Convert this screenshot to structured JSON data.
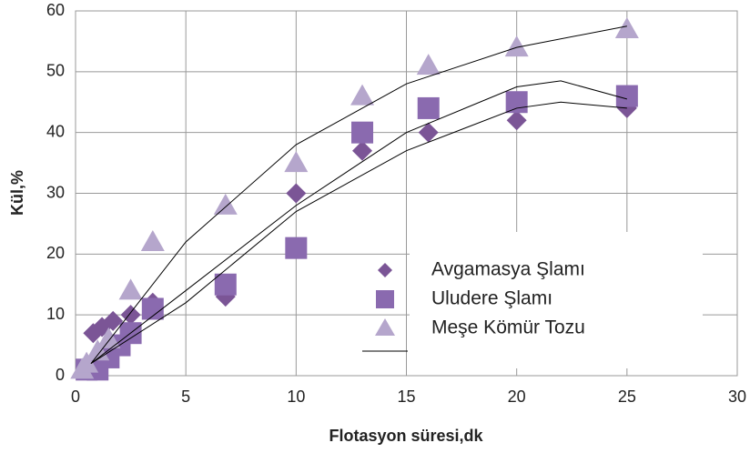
{
  "chart_data": {
    "type": "scatter",
    "xlabel": "Flotasyon süresi,dk",
    "ylabel": "Kül,%",
    "xlim": [
      0,
      30
    ],
    "xticks": [
      0,
      5,
      10,
      15,
      20,
      25,
      30
    ],
    "ylim": [
      0,
      60
    ],
    "yticks": [
      0,
      10,
      20,
      30,
      40,
      50,
      60
    ],
    "grid": true,
    "legend": "lower right",
    "series": [
      {
        "name": "Avgamasya Şlamı",
        "color": "#7b5596",
        "marker": "diamond",
        "x": [
          0.5,
          0.8,
          1.2,
          1.7,
          2.5,
          3.5,
          6.8,
          10,
          13,
          16,
          20,
          25
        ],
        "values": [
          1,
          7,
          8,
          9,
          10,
          12,
          13,
          30,
          37,
          40,
          42,
          44
        ],
        "trend": {
          "x": [
            0.7,
            5,
            10,
            15,
            20,
            22,
            25
          ],
          "values": [
            2,
            12,
            27,
            37,
            44,
            45,
            44
          ]
        }
      },
      {
        "name": "Uludere Şlamı",
        "color": "#8a6aaf",
        "marker": "square",
        "x": [
          0.5,
          1,
          1.5,
          2,
          2.5,
          3.5,
          6.8,
          10,
          13,
          16,
          20,
          25
        ],
        "values": [
          1,
          1,
          3,
          5,
          7,
          11,
          15,
          21,
          40,
          44,
          45,
          46
        ],
        "trend": {
          "x": [
            0.7,
            5,
            10,
            15,
            20,
            22,
            25
          ],
          "values": [
            2,
            14,
            28,
            40,
            47.5,
            48.5,
            45.5
          ]
        }
      },
      {
        "name": "Meşe Kömür Tozu",
        "color": "#b5a6cc",
        "marker": "triangle",
        "x": [
          0.3,
          0.5,
          1,
          1.5,
          2.5,
          3.5,
          6.8,
          10,
          13,
          16,
          20,
          25
        ],
        "values": [
          1,
          2,
          4,
          6,
          14,
          22,
          28,
          35,
          46,
          51,
          54,
          57
        ],
        "trend": {
          "x": [
            0.7,
            5,
            10,
            15,
            20,
            25
          ],
          "values": [
            2,
            22,
            38,
            48,
            54,
            57.5
          ]
        }
      }
    ]
  }
}
